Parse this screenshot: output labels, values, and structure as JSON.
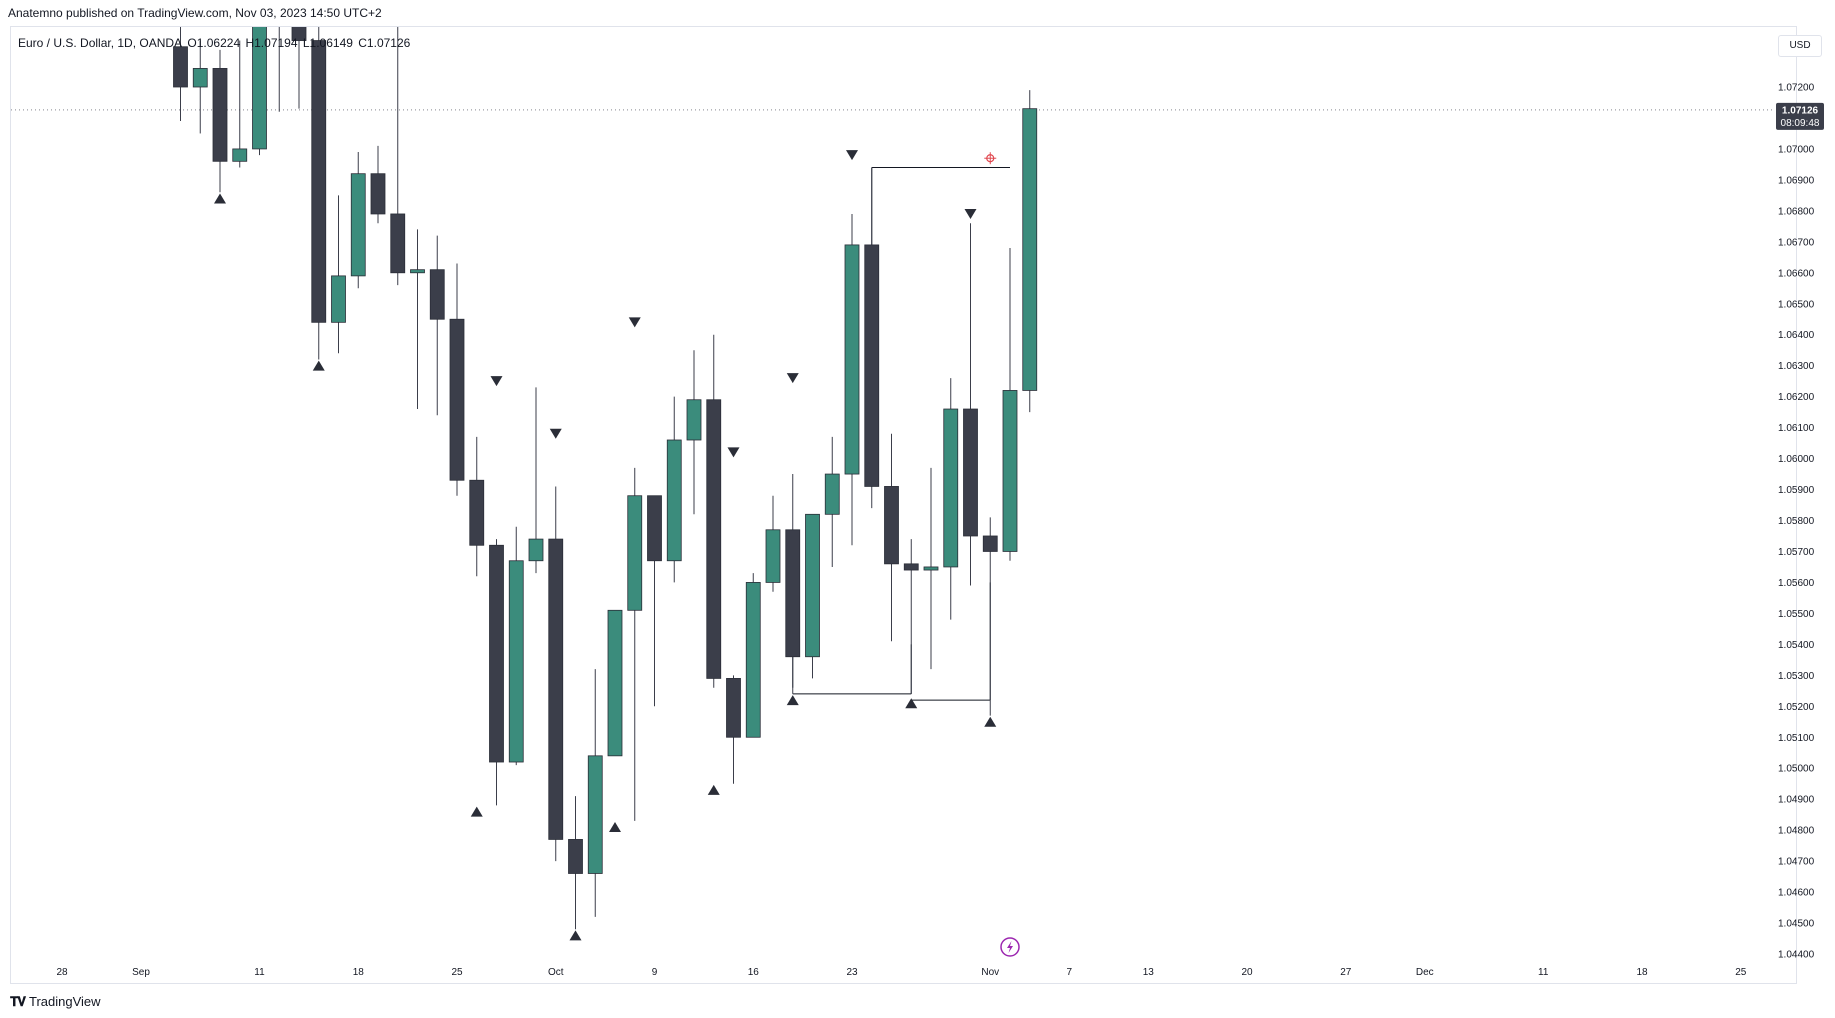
{
  "header": {
    "published": "Anatemno published on TradingView.com, Nov 03, 2023 14:50 UTC+2"
  },
  "legend": {
    "symbol": "Euro / U.S. Dollar, 1D, OANDA",
    "open": "O1.06224",
    "high": "H1.07194",
    "low": "L1.06149",
    "close": "C1.07126"
  },
  "currency_button": "USD",
  "footer": {
    "brand": "TradingView"
  },
  "price_badge": {
    "price": "1.07126",
    "countdown": "08:09:48"
  },
  "colors": {
    "bull": "#3b8c7c",
    "bear": "#3b3e4a",
    "grid": "#e0e3eb",
    "badge": "#3b3e4a",
    "marker": "#e0464e",
    "bolt": "#9c27b0"
  },
  "chart_data": {
    "type": "candlestick",
    "ylim": [
      1.044,
      1.0735
    ],
    "y_ticks": [
      "1.07200",
      "1.07000",
      "1.06900",
      "1.06800",
      "1.06700",
      "1.06600",
      "1.06500",
      "1.06400",
      "1.06300",
      "1.06200",
      "1.06100",
      "1.06000",
      "1.05900",
      "1.05800",
      "1.05700",
      "1.05600",
      "1.05500",
      "1.05400",
      "1.05300",
      "1.05200",
      "1.05100",
      "1.05000",
      "1.04900",
      "1.04800",
      "1.04700",
      "1.04600",
      "1.04500",
      "1.04400"
    ],
    "x_ticks": [
      {
        "label": "28",
        "i": 0
      },
      {
        "label": "Sep",
        "i": 4
      },
      {
        "label": "11",
        "i": 10
      },
      {
        "label": "18",
        "i": 15
      },
      {
        "label": "25",
        "i": 20
      },
      {
        "label": "Oct",
        "i": 25
      },
      {
        "label": "9",
        "i": 30
      },
      {
        "label": "16",
        "i": 35
      },
      {
        "label": "23",
        "i": 40
      },
      {
        "label": "Nov",
        "i": 47
      },
      {
        "label": "7",
        "i": 51
      },
      {
        "label": "13",
        "i": 55
      },
      {
        "label": "20",
        "i": 60
      },
      {
        "label": "27",
        "i": 65
      },
      {
        "label": "Dec",
        "i": 69
      },
      {
        "label": "11",
        "i": 75
      },
      {
        "label": "18",
        "i": 80
      },
      {
        "label": "25",
        "i": 85
      }
    ],
    "candles": [
      {
        "i": 6,
        "o": 1.0733,
        "h": 1.0745,
        "l": 1.0709,
        "c": 1.072
      },
      {
        "i": 7,
        "o": 1.072,
        "h": 1.0735,
        "l": 1.0705,
        "c": 1.0726
      },
      {
        "i": 8,
        "o": 1.0726,
        "h": 1.0732,
        "l": 1.0686,
        "c": 1.0696
      },
      {
        "i": 9,
        "o": 1.0696,
        "h": 1.0735,
        "l": 1.0694,
        "c": 1.07
      },
      {
        "i": 10,
        "o": 1.07,
        "h": 1.075,
        "l": 1.0698,
        "c": 1.0745
      },
      {
        "i": 11,
        "o": 1.0745,
        "h": 1.0755,
        "l": 1.0712,
        "c": 1.0745
      },
      {
        "i": 12,
        "o": 1.0745,
        "h": 1.076,
        "l": 1.0713,
        "c": 1.0735
      },
      {
        "i": 13,
        "o": 1.0735,
        "h": 1.0744,
        "l": 1.0632,
        "c": 1.0644
      },
      {
        "i": 14,
        "o": 1.0644,
        "h": 1.0685,
        "l": 1.0634,
        "c": 1.0659
      },
      {
        "i": 15,
        "o": 1.0659,
        "h": 1.0699,
        "l": 1.0655,
        "c": 1.0692
      },
      {
        "i": 16,
        "o": 1.0692,
        "h": 1.0701,
        "l": 1.0676,
        "c": 1.0679
      },
      {
        "i": 17,
        "o": 1.0679,
        "h": 1.0745,
        "l": 1.0656,
        "c": 1.066
      },
      {
        "i": 18,
        "o": 1.066,
        "h": 1.0674,
        "l": 1.0616,
        "c": 1.0661
      },
      {
        "i": 19,
        "o": 1.0661,
        "h": 1.0672,
        "l": 1.0614,
        "c": 1.0645
      },
      {
        "i": 20,
        "o": 1.0645,
        "h": 1.0663,
        "l": 1.0588,
        "c": 1.0593
      },
      {
        "i": 21,
        "o": 1.0593,
        "h": 1.0607,
        "l": 1.0562,
        "c": 1.0572
      },
      {
        "i": 22,
        "o": 1.0572,
        "h": 1.0574,
        "l": 1.0488,
        "c": 1.0502
      },
      {
        "i": 23,
        "o": 1.0502,
        "h": 1.0578,
        "l": 1.0501,
        "c": 1.0567
      },
      {
        "i": 24,
        "o": 1.0567,
        "h": 1.0623,
        "l": 1.0563,
        "c": 1.0574
      },
      {
        "i": 25,
        "o": 1.0574,
        "h": 1.0591,
        "l": 1.047,
        "c": 1.0477
      },
      {
        "i": 26,
        "o": 1.0477,
        "h": 1.0491,
        "l": 1.0448,
        "c": 1.0466
      },
      {
        "i": 27,
        "o": 1.0466,
        "h": 1.0532,
        "l": 1.0452,
        "c": 1.0504
      },
      {
        "i": 28,
        "o": 1.0504,
        "h": 1.0551,
        "l": 1.0504,
        "c": 1.0551
      },
      {
        "i": 29,
        "o": 1.0551,
        "h": 1.0597,
        "l": 1.0483,
        "c": 1.0588
      },
      {
        "i": 30,
        "o": 1.0588,
        "h": 1.0588,
        "l": 1.052,
        "c": 1.0567
      },
      {
        "i": 31,
        "o": 1.0567,
        "h": 1.062,
        "l": 1.056,
        "c": 1.0606
      },
      {
        "i": 32,
        "o": 1.0606,
        "h": 1.0635,
        "l": 1.0582,
        "c": 1.0619
      },
      {
        "i": 33,
        "o": 1.0619,
        "h": 1.064,
        "l": 1.0526,
        "c": 1.0529
      },
      {
        "i": 34,
        "o": 1.0529,
        "h": 1.053,
        "l": 1.0495,
        "c": 1.051
      },
      {
        "i": 35,
        "o": 1.051,
        "h": 1.0563,
        "l": 1.051,
        "c": 1.056
      },
      {
        "i": 36,
        "o": 1.056,
        "h": 1.0588,
        "l": 1.0557,
        "c": 1.0577
      },
      {
        "i": 37,
        "o": 1.0577,
        "h": 1.0595,
        "l": 1.0524,
        "c": 1.0536
      },
      {
        "i": 38,
        "o": 1.0536,
        "h": 1.0582,
        "l": 1.0529,
        "c": 1.0582
      },
      {
        "i": 39,
        "o": 1.0582,
        "h": 1.0607,
        "l": 1.0565,
        "c": 1.0595
      },
      {
        "i": 40,
        "o": 1.0595,
        "h": 1.0679,
        "l": 1.0572,
        "c": 1.0669
      },
      {
        "i": 41,
        "o": 1.0669,
        "h": 1.0694,
        "l": 1.0584,
        "c": 1.0591
      },
      {
        "i": 42,
        "o": 1.0591,
        "h": 1.0608,
        "l": 1.0541,
        "c": 1.0566
      },
      {
        "i": 43,
        "o": 1.0566,
        "h": 1.0574,
        "l": 1.0524,
        "c": 1.0564
      },
      {
        "i": 44,
        "o": 1.0564,
        "h": 1.0597,
        "l": 1.0532,
        "c": 1.0565
      },
      {
        "i": 45,
        "o": 1.0565,
        "h": 1.0626,
        "l": 1.0548,
        "c": 1.0616
      },
      {
        "i": 46,
        "o": 1.0616,
        "h": 1.0676,
        "l": 1.0559,
        "c": 1.0575
      },
      {
        "i": 47,
        "o": 1.0575,
        "h": 1.0581,
        "l": 1.0517,
        "c": 1.057
      },
      {
        "i": 48,
        "o": 1.057,
        "h": 1.0668,
        "l": 1.0567,
        "c": 1.0622
      },
      {
        "i": 49,
        "o": 1.0622,
        "h": 1.0719,
        "l": 1.0615,
        "c": 1.0713
      }
    ],
    "swing_highs": [
      {
        "i": 22,
        "p": 1.0625
      },
      {
        "i": 25,
        "p": 1.0608
      },
      {
        "i": 29,
        "p": 1.0644
      },
      {
        "i": 34,
        "p": 1.0602
      },
      {
        "i": 37,
        "p": 1.0626
      },
      {
        "i": 40,
        "p": 1.0698
      },
      {
        "i": 46,
        "p": 1.0679
      }
    ],
    "swing_lows": [
      {
        "i": 8,
        "p": 1.0684
      },
      {
        "i": 13,
        "p": 1.063
      },
      {
        "i": 21,
        "p": 1.0486
      },
      {
        "i": 26,
        "p": 1.0446
      },
      {
        "i": 28,
        "p": 1.0481
      },
      {
        "i": 33,
        "p": 1.0493
      },
      {
        "i": 37,
        "p": 1.0522
      },
      {
        "i": 43,
        "p": 1.0521
      },
      {
        "i": 47,
        "p": 1.0515
      }
    ],
    "lines": [
      {
        "i1": 41,
        "p1": 1.0694,
        "i2": 41,
        "p2": 1.066
      },
      {
        "i1": 41,
        "p1": 1.0694,
        "i2": 48,
        "p2": 1.0694
      },
      {
        "i1": 37,
        "p1": 1.0526,
        "i2": 37,
        "p2": 1.0554
      },
      {
        "i1": 37,
        "p1": 1.0524,
        "i2": 43,
        "p2": 1.0524
      },
      {
        "i1": 43,
        "p1": 1.0524,
        "i2": 43,
        "p2": 1.054
      },
      {
        "i1": 43,
        "p1": 1.0522,
        "i2": 47,
        "p2": 1.0522
      },
      {
        "i1": 47,
        "p1": 1.0522,
        "i2": 47,
        "p2": 1.056
      }
    ],
    "target_marker": {
      "i": 47,
      "p": 1.0697
    },
    "last_price": 1.07126
  }
}
